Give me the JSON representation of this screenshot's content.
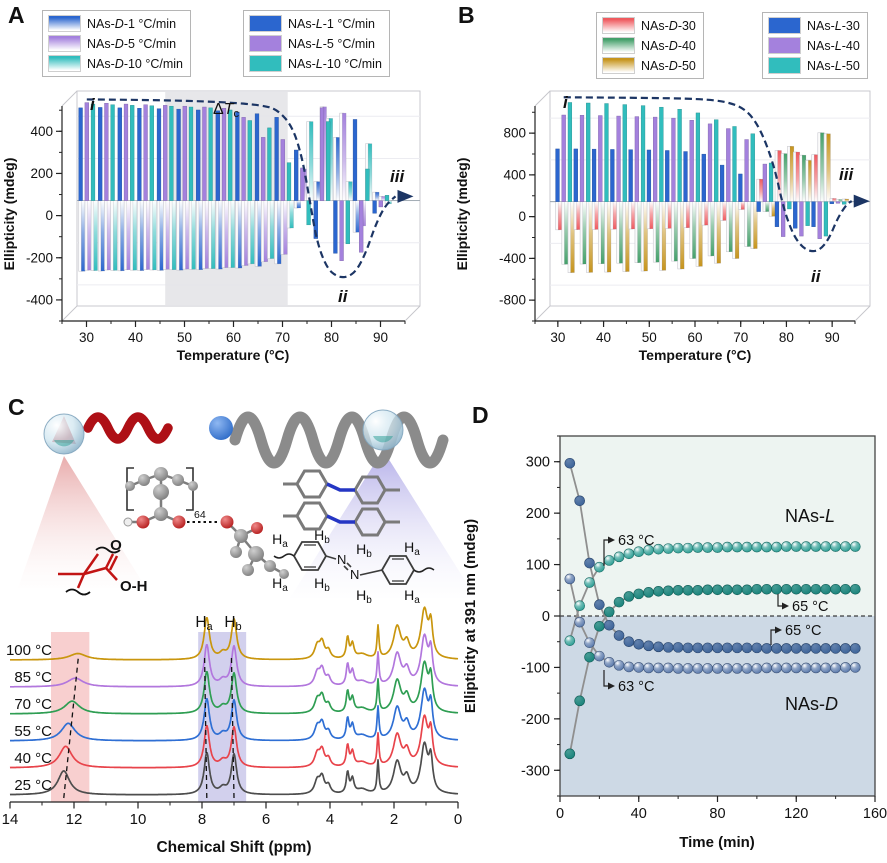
{
  "colors": {
    "navy_curve": "#1c3564",
    "teal": "#2a9d93",
    "steel_blue": "#3c6399",
    "d_bg_upper": "#edf4f1",
    "d_bg_lower": "#cdd9e5",
    "blue": "#2b66cf",
    "purple": "#a481dd",
    "teal_bar": "#31bdbd",
    "red": "#ef5a5f",
    "green": "#44a06a",
    "gold": "#c6941c"
  },
  "panelA": {
    "label": "A",
    "y_title": "Ellipticity (mdeg)",
    "x_title": "Temperature (°C)",
    "ann_i": "i",
    "ann_ii": "ii",
    "ann_iii": "iii",
    "band_delta": "Δ",
    "band_T": "T",
    "band_c": "c",
    "legend_d": [
      {
        "pre": "NAs-",
        "letter": "D",
        "post": "-1 °C/min",
        "color": "#2b66cf",
        "style": "gradient"
      },
      {
        "pre": "NAs-",
        "letter": "D",
        "post": "-5 °C/min",
        "color": "#a481dd",
        "style": "gradient"
      },
      {
        "pre": "NAs-",
        "letter": "D",
        "post": "-10 °C/min",
        "color": "#31bdbd",
        "style": "gradient"
      }
    ],
    "legend_l": [
      {
        "pre": "NAs-",
        "letter": "L",
        "post": "-1 °C/min",
        "color": "#2b66cf",
        "style": "solid"
      },
      {
        "pre": "NAs-",
        "letter": "L",
        "post": "-5 °C/min",
        "color": "#a481dd",
        "style": "solid"
      },
      {
        "pre": "NAs-",
        "letter": "L",
        "post": "-10 °C/min",
        "color": "#31bdbd",
        "style": "solid"
      }
    ]
  },
  "panelB": {
    "label": "B",
    "y_title": "Ellipticity (mdeg)",
    "x_title": "Temperature (°C)",
    "ann_i": "i",
    "ann_ii": "ii",
    "ann_iii": "iii",
    "legend_d": [
      {
        "pre": "NAs-",
        "letter": "D",
        "post": "-30",
        "color": "#ef5a5f",
        "style": "gradient"
      },
      {
        "pre": "NAs-",
        "letter": "D",
        "post": "-40",
        "color": "#44a06a",
        "style": "gradient"
      },
      {
        "pre": "NAs-",
        "letter": "D",
        "post": "-50",
        "color": "#c6941c",
        "style": "gradient"
      }
    ],
    "legend_l": [
      {
        "pre": "NAs-",
        "letter": "L",
        "post": "-30",
        "color": "#2b66cf",
        "style": "solid"
      },
      {
        "pre": "NAs-",
        "letter": "L",
        "post": "-40",
        "color": "#a481dd",
        "style": "solid"
      },
      {
        "pre": "NAs-",
        "letter": "L",
        "post": "-50",
        "color": "#31bdbd",
        "style": "solid"
      }
    ]
  },
  "panelC": {
    "label": "C",
    "sub64": "64",
    "o_label": "O",
    "oh_label": "O-H",
    "n1": "N",
    "n2": "N",
    "h_labels": [
      {
        "base": "H",
        "sub": "a"
      },
      {
        "base": "H",
        "sub": "b"
      },
      {
        "base": "H",
        "sub": "a"
      },
      {
        "base": "H",
        "sub": "b"
      },
      {
        "base": "H",
        "sub": "b"
      },
      {
        "base": "H",
        "sub": "a"
      },
      {
        "base": "H",
        "sub": "b"
      },
      {
        "base": "H",
        "sub": "a"
      }
    ]
  },
  "panelD": {
    "label": "D",
    "nas_pre": "NAs-",
    "nas_l": "L",
    "nas_d": "D"
  },
  "chart_data": [
    {
      "type": "bar",
      "panel": "A",
      "xlabel": "Temperature (°C)",
      "ylabel": "Ellipticity (mdeg)",
      "xlim": [
        25,
        95
      ],
      "ylim": [
        -500,
        520
      ],
      "x_ticks": [
        30,
        40,
        50,
        60,
        70,
        80,
        90
      ],
      "y_ticks": [
        -400,
        -200,
        0,
        200,
        400
      ],
      "band_x": [
        43,
        68
      ],
      "band_label": "ΔTc",
      "annotations": [
        "i",
        "ii",
        "iii"
      ],
      "categories": [
        27,
        31,
        35,
        39,
        43,
        47,
        51,
        55,
        59,
        63,
        67,
        71,
        75,
        79,
        83,
        87
      ],
      "series": [
        {
          "name": "NAs-L-1 °C/min",
          "style": "solid",
          "color": "#2b66cf",
          "values": [
            440,
            442,
            440,
            438,
            436,
            434,
            430,
            426,
            420,
            412,
            395,
            240,
            -180,
            -250,
            385,
            -60
          ]
        },
        {
          "name": "NAs-L-5 °C/min",
          "style": "solid",
          "color": "#a481dd",
          "values": [
            465,
            462,
            458,
            455,
            452,
            448,
            444,
            438,
            395,
            300,
            290,
            155,
            440,
            -285,
            -245,
            -30
          ]
        },
        {
          "name": "NAs-L-10 °C/min",
          "style": "solid",
          "color": "#31bdbd",
          "values": [
            458,
            455,
            452,
            450,
            448,
            444,
            440,
            430,
            380,
            345,
            180,
            -115,
            375,
            -205,
            150,
            25
          ]
        },
        {
          "name": "NAs-D-1 °C/min",
          "style": "gradient",
          "color": "#2b66cf",
          "values": [
            -335,
            -334,
            -333,
            -332,
            -331,
            -330,
            -328,
            -325,
            -320,
            -312,
            -300,
            -35,
            90,
            300,
            -150,
            40
          ]
        },
        {
          "name": "NAs-D-5 °C/min",
          "style": "gradient",
          "color": "#a481dd",
          "values": [
            -330,
            -329,
            -328,
            -327,
            -326,
            -325,
            -322,
            -318,
            -308,
            -290,
            -255,
            150,
            445,
            415,
            -120,
            20
          ]
        },
        {
          "name": "NAs-D-10 °C/min",
          "style": "gradient",
          "color": "#31bdbd",
          "values": [
            -332,
            -331,
            -330,
            -329,
            -328,
            -326,
            -323,
            -318,
            -300,
            -275,
            -130,
            375,
            390,
            90,
            270,
            -15
          ]
        }
      ],
      "curve": [
        [
          27,
          480
        ],
        [
          40,
          478
        ],
        [
          55,
          468
        ],
        [
          63,
          452
        ],
        [
          66,
          430
        ],
        [
          69,
          350
        ],
        [
          71,
          200
        ],
        [
          72.5,
          0
        ],
        [
          74,
          -200
        ],
        [
          76,
          -320
        ],
        [
          78,
          -360
        ],
        [
          80,
          -365
        ],
        [
          82,
          -335
        ],
        [
          84,
          -245
        ],
        [
          86,
          -110
        ],
        [
          88,
          -20
        ],
        [
          90,
          20
        ]
      ]
    },
    {
      "type": "bar",
      "panel": "B",
      "xlabel": "Temperature (°C)",
      "ylabel": "Ellipticity (mdeg)",
      "xlim": [
        25,
        95
      ],
      "ylim": [
        -1000,
        1060
      ],
      "x_ticks": [
        30,
        40,
        50,
        60,
        70,
        80,
        90
      ],
      "y_ticks": [
        -800,
        -400,
        0,
        400,
        800
      ],
      "annotations": [
        "i",
        "ii",
        "iii"
      ],
      "categories": [
        28,
        32,
        36,
        40,
        44,
        48,
        52,
        56,
        60,
        64,
        68,
        72,
        76,
        80,
        84,
        88
      ],
      "series": [
        {
          "name": "NAs-L-30",
          "style": "solid",
          "color": "#2b66cf",
          "values": [
            505,
            505,
            503,
            500,
            498,
            495,
            490,
            480,
            455,
            350,
            265,
            -95,
            -240,
            -255,
            -240,
            -20
          ]
        },
        {
          "name": "NAs-L-40",
          "style": "solid",
          "color": "#a481dd",
          "values": [
            830,
            828,
            825,
            820,
            815,
            810,
            800,
            780,
            745,
            700,
            595,
            360,
            -335,
            -330,
            -355,
            -15
          ]
        },
        {
          "name": "NAs-L-50",
          "style": "solid",
          "color": "#31bdbd",
          "values": [
            950,
            945,
            940,
            930,
            920,
            905,
            885,
            850,
            785,
            720,
            650,
            370,
            -70,
            -230,
            -330,
            -25
          ]
        },
        {
          "name": "NAs-D-30",
          "style": "gradient",
          "color": "#ef5a5f",
          "values": [
            -270,
            -268,
            -266,
            -264,
            -262,
            -260,
            -256,
            -250,
            -225,
            -180,
            -75,
            215,
            490,
            475,
            450,
            30
          ]
        },
        {
          "name": "NAs-D-40",
          "style": "gradient",
          "color": "#44a06a",
          "values": [
            -600,
            -598,
            -595,
            -590,
            -585,
            -580,
            -570,
            -545,
            -520,
            -480,
            -430,
            -95,
            460,
            445,
            660,
            20
          ]
        },
        {
          "name": "NAs-D-50",
          "style": "gradient",
          "color": "#c6941c",
          "values": [
            -680,
            -678,
            -675,
            -670,
            -665,
            -658,
            -645,
            -620,
            -590,
            -545,
            -450,
            -140,
            530,
            395,
            650,
            25
          ]
        }
      ],
      "curve": [
        [
          28,
          1000
        ],
        [
          45,
          995
        ],
        [
          58,
          985
        ],
        [
          64,
          955
        ],
        [
          68,
          880
        ],
        [
          71,
          700
        ],
        [
          74,
          350
        ],
        [
          76,
          -50
        ],
        [
          78,
          -300
        ],
        [
          80,
          -430
        ],
        [
          82,
          -480
        ],
        [
          84,
          -465
        ],
        [
          86,
          -360
        ],
        [
          88,
          -150
        ],
        [
          90,
          -20
        ],
        [
          91,
          5
        ]
      ]
    },
    {
      "type": "line",
      "panel": "C",
      "xlabel": "Chemical Shift (ppm)",
      "xlim": [
        14,
        0
      ],
      "x_ticks": [
        14,
        12,
        10,
        8,
        6,
        4,
        2,
        0
      ],
      "bands": [
        {
          "from": 12.72,
          "to": 11.52,
          "color": "#f6c3c3"
        },
        {
          "from": 8.12,
          "to": 6.62,
          "color": "#c7c4e8"
        }
      ],
      "band_labels": [
        {
          "base": "H",
          "sub": "a"
        },
        {
          "base": "H",
          "sub": "b"
        }
      ],
      "traces": [
        {
          "label": "25 °C",
          "color": "#4d4d4d",
          "cooh": [
            12.32,
            30,
            0.22
          ]
        },
        {
          "label": "40 °C",
          "color": "#e8444b",
          "cooh": [
            12.26,
            27,
            0.24
          ]
        },
        {
          "label": "55 °C",
          "color": "#2f6fd4",
          "cooh": [
            12.18,
            22,
            0.26
          ]
        },
        {
          "label": "70 °C",
          "color": "#2f9e53",
          "cooh": [
            12.06,
            16,
            0.28
          ]
        },
        {
          "label": "85 °C",
          "color": "#b277dd",
          "cooh": [
            11.96,
            11,
            0.3
          ]
        },
        {
          "label": "100 °C",
          "color": "#c9960e",
          "cooh": [
            11.88,
            8,
            0.32
          ]
        }
      ],
      "common_peaks": [
        [
          7.85,
          52,
          0.1
        ],
        [
          7.35,
          7,
          0.12
        ],
        [
          7.0,
          50,
          0.1
        ],
        [
          4.4,
          16,
          0.1
        ],
        [
          4.25,
          20,
          0.09
        ],
        [
          4.05,
          10,
          0.08
        ],
        [
          3.45,
          26,
          0.05
        ],
        [
          3.3,
          18,
          0.06
        ],
        [
          3.0,
          6,
          0.2
        ],
        [
          2.5,
          40,
          0.035
        ],
        [
          1.9,
          40,
          0.14
        ],
        [
          1.6,
          18,
          0.1
        ],
        [
          1.05,
          60,
          0.13
        ],
        [
          0.85,
          38,
          0.07
        ]
      ],
      "track_lines": [
        [
          12.32,
          11.86
        ],
        [
          7.85,
          7.92
        ],
        [
          7.0,
          7.08
        ]
      ]
    },
    {
      "type": "scatter",
      "panel": "D",
      "xlabel": "Time (min)",
      "ylabel": "Ellipticity at 391 nm (mdeg)",
      "xlim": [
        0,
        160
      ],
      "ylim": [
        -350,
        350
      ],
      "x_ticks": [
        0,
        40,
        80,
        120,
        160
      ],
      "y_ticks": [
        -300,
        -200,
        -100,
        0,
        100,
        200,
        300
      ],
      "zero_line": true,
      "x": [
        5,
        10,
        15,
        20,
        25,
        30,
        35,
        40,
        45,
        50,
        55,
        60,
        65,
        70,
        75,
        80,
        85,
        90,
        95,
        100,
        105,
        110,
        115,
        120,
        125,
        130,
        135,
        140,
        145,
        150
      ],
      "series": [
        {
          "name": "NAs-L 63 °C",
          "marker": "gloss",
          "color": "#2a9d93",
          "values": [
            -48,
            20,
            65,
            95,
            108,
            115,
            121,
            125,
            128,
            130,
            131,
            132,
            132,
            133,
            133,
            133,
            134,
            134,
            134,
            134,
            134,
            134,
            135,
            135,
            135,
            135,
            135,
            135,
            135,
            135
          ]
        },
        {
          "name": "NAs-L 65 °C",
          "marker": "solid",
          "color": "#19837b",
          "values": [
            -268,
            -165,
            -80,
            -20,
            8,
            27,
            38,
            43,
            46,
            48,
            49,
            50,
            50,
            50,
            51,
            51,
            51,
            51,
            51,
            52,
            52,
            52,
            52,
            52,
            52,
            52,
            52,
            52,
            52,
            52
          ]
        },
        {
          "name": "NAs-D 65 °C",
          "marker": "solid",
          "color": "#3c6399",
          "values": [
            297,
            224,
            103,
            22,
            -18,
            -38,
            -50,
            -55,
            -58,
            -60,
            -61,
            -61,
            -62,
            -62,
            -62,
            -62,
            -62,
            -62,
            -62,
            -62,
            -63,
            -63,
            -63,
            -63,
            -63,
            -63,
            -63,
            -63,
            -63,
            -63
          ]
        },
        {
          "name": "NAs-D 63 °C",
          "marker": "gloss",
          "color": "#5878ab",
          "values": [
            72,
            -12,
            -52,
            -78,
            -90,
            -96,
            -99,
            -100,
            -101,
            -101,
            -101,
            -102,
            -102,
            -102,
            -102,
            -102,
            -102,
            -102,
            -102,
            -102,
            -101,
            -101,
            -101,
            -101,
            -101,
            -101,
            -101,
            -101,
            -100,
            -100
          ]
        }
      ],
      "annotations": [
        "63 °C",
        "65 °C",
        "65 °C",
        "63 °C"
      ]
    }
  ]
}
